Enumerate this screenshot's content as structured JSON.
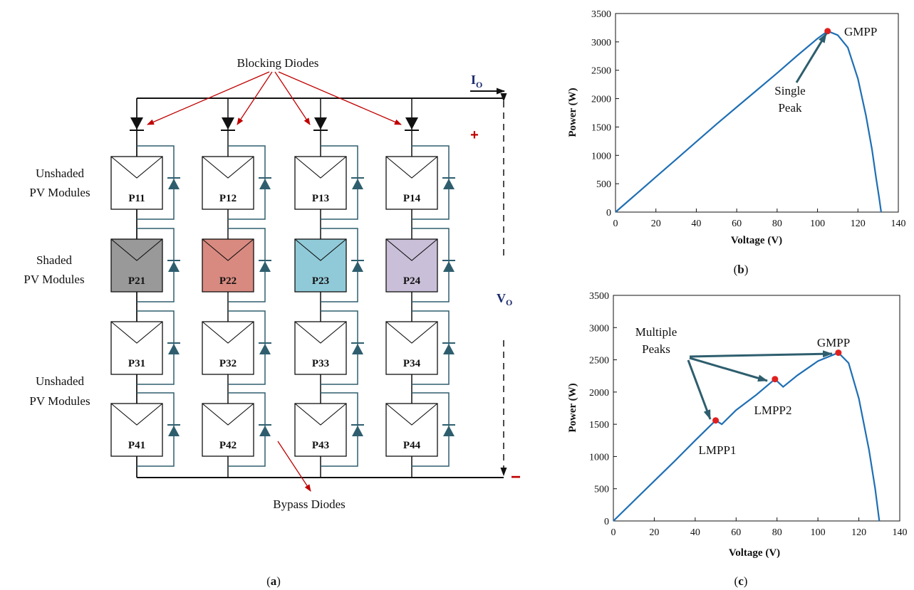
{
  "circuit": {
    "labels": {
      "blocking_diodes": "Blocking Diodes",
      "bypass_diodes": "Bypass Diodes",
      "unshaded_top_1": "Unshaded",
      "unshaded_top_2": "PV Modules",
      "shaded_1": "Shaded",
      "shaded_2": "PV Modules",
      "unshaded_bottom_1": "Unshaded",
      "unshaded_bottom_2": "PV Modules",
      "current": "I",
      "current_sub": "O",
      "voltage": "V",
      "voltage_sub": "O",
      "plus": "+",
      "minus": "−"
    },
    "rows": [
      [
        "P11",
        "P12",
        "P13",
        "P14"
      ],
      [
        "P21",
        "P22",
        "P23",
        "P24"
      ],
      [
        "P31",
        "P32",
        "P33",
        "P34"
      ],
      [
        "P41",
        "P42",
        "P43",
        "P44"
      ]
    ],
    "shaded_fills": [
      "#999999",
      "#d98a80",
      "#90cad8",
      "#c9bfd8"
    ],
    "wire_color": "#2e5e6e",
    "annotation_color": "#c00000",
    "caption": "(a)",
    "caption_parts": [
      "(",
      "a",
      ")"
    ]
  },
  "chart_data": [
    {
      "type": "line",
      "caption": "(b)",
      "caption_parts": [
        "(",
        "b",
        ")"
      ],
      "xlabel": "Voltage (V)",
      "ylabel": "Power (W)",
      "xlim": [
        0,
        140
      ],
      "ylim": [
        0,
        3500
      ],
      "xticks": [
        0,
        20,
        40,
        60,
        80,
        100,
        120,
        140
      ],
      "yticks": [
        0,
        500,
        1000,
        1500,
        2000,
        2500,
        3000,
        3500
      ],
      "series": [
        {
          "color": "#1f6fb4",
          "x": [
            0,
            10,
            20,
            30,
            40,
            50,
            60,
            70,
            80,
            90,
            100,
            105,
            110,
            115,
            120,
            124,
            127,
            129,
            130.5,
            131.5
          ],
          "y": [
            0,
            310,
            620,
            930,
            1240,
            1550,
            1850,
            2150,
            2450,
            2760,
            3060,
            3190,
            3120,
            2900,
            2350,
            1700,
            1100,
            600,
            250,
            0
          ]
        }
      ],
      "markers": [
        {
          "x": 105,
          "y": 3190,
          "color": "#e02020"
        }
      ],
      "annotations": [
        {
          "lines": [
            "GMPP"
          ]
        },
        {
          "lines": [
            "Single",
            "Peak"
          ]
        }
      ]
    },
    {
      "type": "line",
      "caption": "(c)",
      "caption_parts": [
        "(",
        "c",
        ")"
      ],
      "xlabel": "Voltage (V)",
      "ylabel": "Power (W)",
      "xlim": [
        0,
        140
      ],
      "ylim": [
        0,
        3500
      ],
      "xticks": [
        0,
        20,
        40,
        60,
        80,
        100,
        120,
        140
      ],
      "yticks": [
        0,
        500,
        1000,
        1500,
        2000,
        2500,
        3000,
        3500
      ],
      "series": [
        {
          "color": "#1f6fb4",
          "x": [
            0,
            10,
            20,
            30,
            40,
            50,
            53,
            60,
            70,
            79,
            83,
            90,
            100,
            110,
            115,
            120,
            125,
            128,
            130
          ],
          "y": [
            0,
            310,
            620,
            930,
            1250,
            1560,
            1500,
            1720,
            1960,
            2200,
            2080,
            2260,
            2480,
            2610,
            2450,
            1900,
            1100,
            500,
            0
          ]
        }
      ],
      "markers": [
        {
          "x": 50,
          "y": 1560,
          "color": "#e02020"
        },
        {
          "x": 79,
          "y": 2200,
          "color": "#e02020"
        },
        {
          "x": 110,
          "y": 2610,
          "color": "#e02020"
        }
      ],
      "annotations": [
        {
          "lines": [
            "GMPP"
          ]
        },
        {
          "lines": [
            "LMPP2"
          ]
        },
        {
          "lines": [
            "LMPP1"
          ]
        },
        {
          "lines": [
            "Multiple",
            "Peaks"
          ]
        }
      ]
    }
  ]
}
